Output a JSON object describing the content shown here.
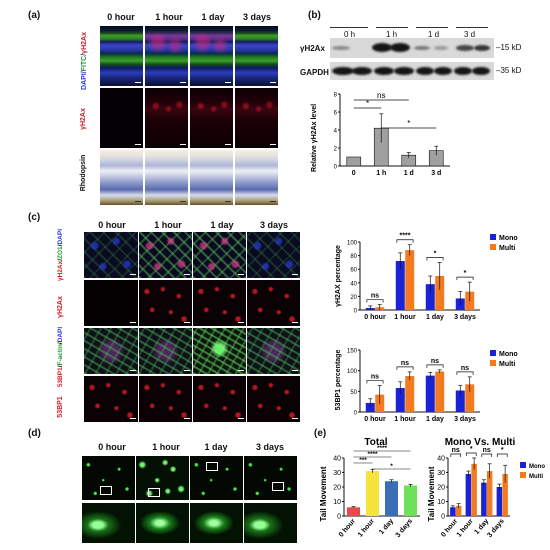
{
  "panel_labels": {
    "a": "(a)",
    "b": "(b)",
    "c": "(c)",
    "d": "(d)",
    "e": "(e)"
  },
  "timepoints": [
    "0 hour",
    "1 hour",
    "1 day",
    "3 days"
  ],
  "panel_a": {
    "row_labels": {
      "merge_prefix": "DAPI/",
      "merge_fitc": "FITC",
      "merge_sep": "/",
      "merge_gh2ax": "γH2Ax",
      "gh2ax": "γH2Ax",
      "rhodopsin": "Rhodopsin"
    }
  },
  "panel_b": {
    "lanes": [
      "0 h",
      "1 h",
      "1 d",
      "3 d"
    ],
    "blot_rows": [
      "γH2Ax",
      "GAPDH"
    ],
    "sizes": [
      "15 kD",
      "35 kD"
    ],
    "sig": [
      "*",
      "ns",
      "*"
    ]
  },
  "panel_c": {
    "row_labels": {
      "merge1_a": "DAPI",
      "merge1_b": "ZO1",
      "merge1_c": "γH2Ax",
      "gh2ax": "γH2Ax",
      "merge2_a": "DAPI",
      "merge2_b": "F-actin",
      "merge2_c": "53BP1",
      "bp1": "53BP1"
    }
  },
  "panel_d": {},
  "colors": {
    "mono": "#1a23d6",
    "multi": "#f47a1f",
    "total_0h": "#e8484a",
    "total_1h": "#f5e33a",
    "total_1d": "#3b6fb5",
    "total_3d": "#6fe05a",
    "bar_b": "#a0a0a0"
  },
  "chart_data": [
    {
      "id": "b",
      "type": "bar",
      "categories": [
        "0",
        "1 h",
        "1 d",
        "3 d"
      ],
      "values": [
        1.0,
        4.2,
        1.2,
        1.7
      ],
      "errors": [
        0.0,
        1.6,
        0.3,
        0.5
      ],
      "ylabel": "Relative γH2Ax level",
      "ylim": [
        0,
        8
      ],
      "yticks": [
        0,
        2,
        4,
        6,
        8
      ],
      "annotations": [
        "*",
        "ns",
        "*"
      ]
    },
    {
      "id": "c1",
      "type": "bar",
      "categories": [
        "0 hour",
        "1 hour",
        "1 day",
        "3 days"
      ],
      "series": [
        {
          "name": "Mono",
          "values": [
            3,
            72,
            38,
            17
          ],
          "errors": [
            3,
            12,
            12,
            10
          ]
        },
        {
          "name": "Multi",
          "values": [
            4,
            88,
            50,
            27
          ],
          "errors": [
            4,
            8,
            20,
            14
          ]
        }
      ],
      "ylabel": "γH2AX percentage",
      "ylim": [
        0,
        100
      ],
      "yticks": [
        0,
        20,
        40,
        60,
        80,
        100
      ],
      "annotations": [
        "ns",
        "****",
        "*",
        "*"
      ],
      "legend": "right"
    },
    {
      "id": "c2",
      "type": "bar",
      "categories": [
        "0 hour",
        "1 hour",
        "1 day",
        "3 days"
      ],
      "series": [
        {
          "name": "Mono",
          "values": [
            22,
            58,
            88,
            52
          ],
          "errors": [
            10,
            15,
            8,
            12
          ]
        },
        {
          "name": "Multi",
          "values": [
            42,
            87,
            98,
            67
          ],
          "errors": [
            22,
            10,
            4,
            18
          ]
        }
      ],
      "ylabel": "53BP1 percentage",
      "ylim": [
        0,
        150
      ],
      "yticks": [
        0,
        50,
        100,
        150
      ],
      "annotations": [
        "ns",
        "ns",
        "ns",
        "ns"
      ],
      "legend": "right"
    },
    {
      "id": "e1",
      "type": "bar",
      "title": "Total",
      "categories": [
        "0 hour",
        "1 hour",
        "1 day",
        "3 days"
      ],
      "values": [
        6,
        31,
        24,
        21
      ],
      "errors": [
        0.5,
        1.2,
        1.0,
        0.8
      ],
      "ylabel": "Tail Movement",
      "ylim": [
        0,
        40
      ],
      "yticks": [
        0,
        10,
        20,
        30,
        40
      ],
      "annotations": [
        "****",
        "****",
        "***",
        "*"
      ]
    },
    {
      "id": "e2",
      "type": "bar",
      "title": "Mono Vs. Multi",
      "categories": [
        "0 hour",
        "1 hour",
        "1 day",
        "3 days"
      ],
      "series": [
        {
          "name": "Mono",
          "values": [
            6,
            29,
            23,
            20
          ],
          "errors": [
            1,
            2,
            2,
            2
          ]
        },
        {
          "name": "Multi",
          "values": [
            7,
            36,
            31,
            29
          ],
          "errors": [
            1.5,
            4,
            5,
            6
          ]
        }
      ],
      "ylabel": "Tail Movement",
      "ylim": [
        0,
        40
      ],
      "yticks": [
        0,
        10,
        20,
        30,
        40
      ],
      "annotations": [
        "ns",
        "*",
        "ns",
        "*"
      ],
      "legend": "right"
    }
  ]
}
